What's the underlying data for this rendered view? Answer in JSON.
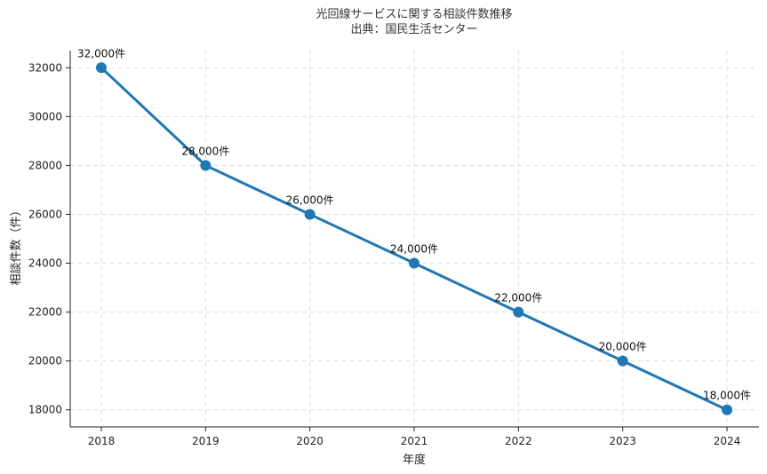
{
  "chart_data": {
    "type": "line",
    "title": "光回線サービスに関する相談件数推移",
    "subtitle": "出典：国民生活センター",
    "xlabel": "年度",
    "ylabel": "相談件数（件）",
    "x": [
      "2018",
      "2019",
      "2020",
      "2021",
      "2022",
      "2023",
      "2024"
    ],
    "values": [
      32000,
      28000,
      26000,
      24000,
      22000,
      20000,
      18000
    ],
    "data_labels": [
      "32,000件",
      "28,000件",
      "26,000件",
      "24,000件",
      "22,000件",
      "20,000件",
      "18,000件"
    ],
    "yticks": [
      "18000",
      "20000",
      "22000",
      "24000",
      "26000",
      "28000",
      "30000",
      "32000"
    ],
    "ylim": [
      17300,
      32700
    ],
    "grid": true,
    "line_color": "#1f77b4",
    "marker": "circle"
  }
}
